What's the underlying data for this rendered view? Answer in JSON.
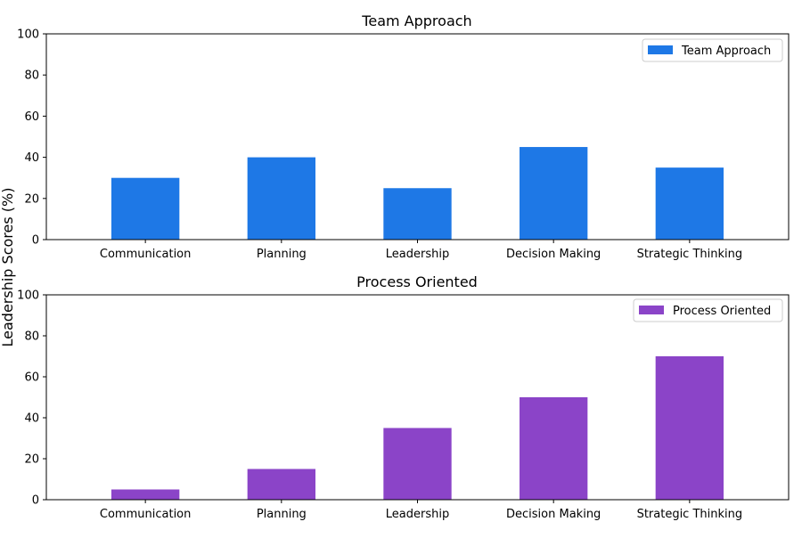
{
  "figure": {
    "ylabel": "Leadership Scores (%)"
  },
  "chart_data": [
    {
      "type": "bar",
      "title": "Team Approach",
      "categories": [
        "Communication",
        "Planning",
        "Leadership",
        "Decision Making",
        "Strategic Thinking"
      ],
      "series": [
        {
          "name": "Team Approach",
          "values": [
            30,
            40,
            25,
            45,
            35
          ],
          "color": "#1e78e6"
        }
      ],
      "ylim": [
        0,
        100
      ],
      "yticks": [
        0,
        20,
        40,
        60,
        80,
        100
      ],
      "grid": false,
      "legend": "top-right"
    },
    {
      "type": "bar",
      "title": "Process Oriented",
      "categories": [
        "Communication",
        "Planning",
        "Leadership",
        "Decision Making",
        "Strategic Thinking"
      ],
      "series": [
        {
          "name": "Process Oriented",
          "values": [
            5,
            15,
            35,
            50,
            70
          ],
          "color": "#8b44c8"
        }
      ],
      "ylim": [
        0,
        100
      ],
      "yticks": [
        0,
        20,
        40,
        60,
        80,
        100
      ],
      "grid": false,
      "legend": "top-right"
    }
  ]
}
